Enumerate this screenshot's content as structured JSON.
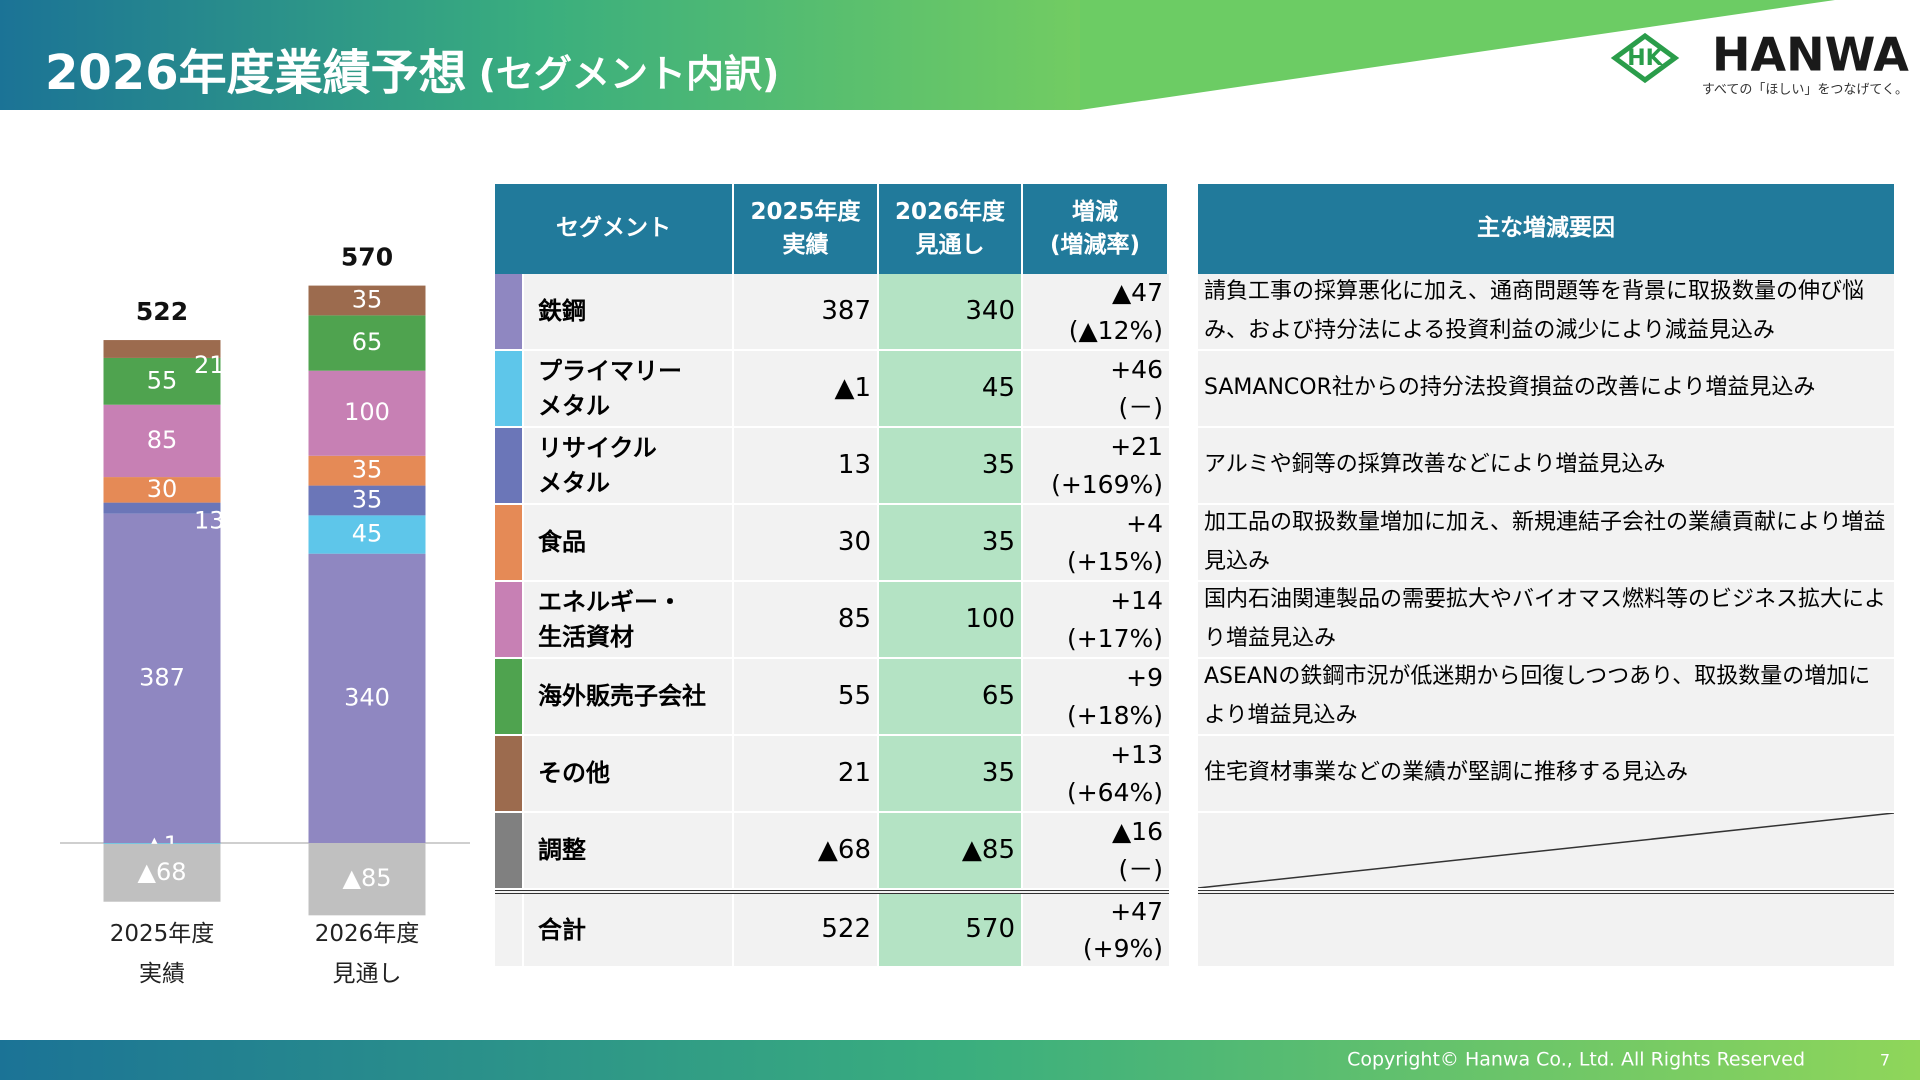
{
  "header": {
    "title": "2026年度業績予想",
    "subtitle": "(セグメント内訳)"
  },
  "logo": {
    "mark": "HK",
    "name": "HANWA",
    "tagline": "すべての「ほしい」をつなげてく。"
  },
  "chart_data": {
    "type": "bar",
    "stacked": true,
    "categories": [
      "2025年度\n実績",
      "2026年度\n見通し"
    ],
    "totals": [
      522,
      570
    ],
    "series": [
      {
        "color": "#8f87c1",
        "values": [
          387,
          340
        ]
      },
      {
        "color": "#5ec6ea",
        "values": [
          -1,
          45
        ],
        "value_labels": [
          "▲1",
          "45"
        ]
      },
      {
        "color": "#6b76b8",
        "values": [
          13,
          35
        ]
      },
      {
        "color": "#e58a56",
        "values": [
          30,
          35
        ]
      },
      {
        "color": "#c780b4",
        "values": [
          85,
          100
        ]
      },
      {
        "color": "#4fa34f",
        "values": [
          55,
          65
        ]
      },
      {
        "color": "#9c6b4e",
        "values": [
          21,
          35
        ]
      },
      {
        "color": "#c0c0c0",
        "values": [
          -68,
          -85
        ],
        "value_labels": [
          "▲68",
          "▲85"
        ]
      }
    ]
  },
  "table": {
    "headers": [
      "セグメント",
      "2025年度\n実績",
      "2026年度\n見通し",
      "増減\n(増減率)"
    ],
    "rows": [
      {
        "segment": "鉄鋼",
        "color": "#8f87c1",
        "actual": "387",
        "forecast": "340",
        "change": "▲47",
        "rate": "(▲12%)"
      },
      {
        "segment": "プライマリー\nメタル",
        "color": "#5ec6ea",
        "actual": "▲1",
        "forecast": "45",
        "change": "+46",
        "rate": "(－)"
      },
      {
        "segment": "リサイクル\nメタル",
        "color": "#6b76b8",
        "actual": "13",
        "forecast": "35",
        "change": "+21",
        "rate": "(+169%)"
      },
      {
        "segment": "食品",
        "color": "#e58a56",
        "actual": "30",
        "forecast": "35",
        "change": "+4",
        "rate": "(+15%)"
      },
      {
        "segment": "エネルギー・\n生活資材",
        "color": "#c780b4",
        "actual": "85",
        "forecast": "100",
        "change": "+14",
        "rate": "(+17%)"
      },
      {
        "segment": "海外販売子会社",
        "color": "#4fa34f",
        "actual": "55",
        "forecast": "65",
        "change": "+9",
        "rate": "(+18%)"
      },
      {
        "segment": "その他",
        "color": "#9c6b4e",
        "actual": "21",
        "forecast": "35",
        "change": "+13",
        "rate": "(+64%)"
      },
      {
        "segment": "調整",
        "color": "#808080",
        "actual": "▲68",
        "forecast": "▲85",
        "change": "▲16",
        "rate": "(－)"
      }
    ],
    "total": {
      "segment": "合計",
      "actual": "522",
      "forecast": "570",
      "change": "+47",
      "rate": "(+9%)"
    }
  },
  "reasons": {
    "header": "主な増減要因",
    "rows": [
      "請負工事の採算悪化に加え、通商問題等を背景に取扱数量の伸び悩み、および持分法による投資利益の減少により減益見込み",
      "SAMANCOR社からの持分法投資損益の改善により増益見込み",
      "アルミや銅等の採算改善などにより増益見込み",
      "加工品の取扱数量増加に加え、新規連結子会社の業績貢献により増益見込み",
      "国内石油関連製品の需要拡大やバイオマス燃料等のビジネス拡大により増益見込み",
      "ASEANの鉄鋼市況が低迷期から回復しつつあり、取扱数量の増加により増益見込み",
      "住宅資材事業などの業績が堅調に推移する見込み"
    ]
  },
  "footer": {
    "copyright": "Copyright© Hanwa Co., Ltd. All Rights Reserved",
    "page": "7"
  }
}
